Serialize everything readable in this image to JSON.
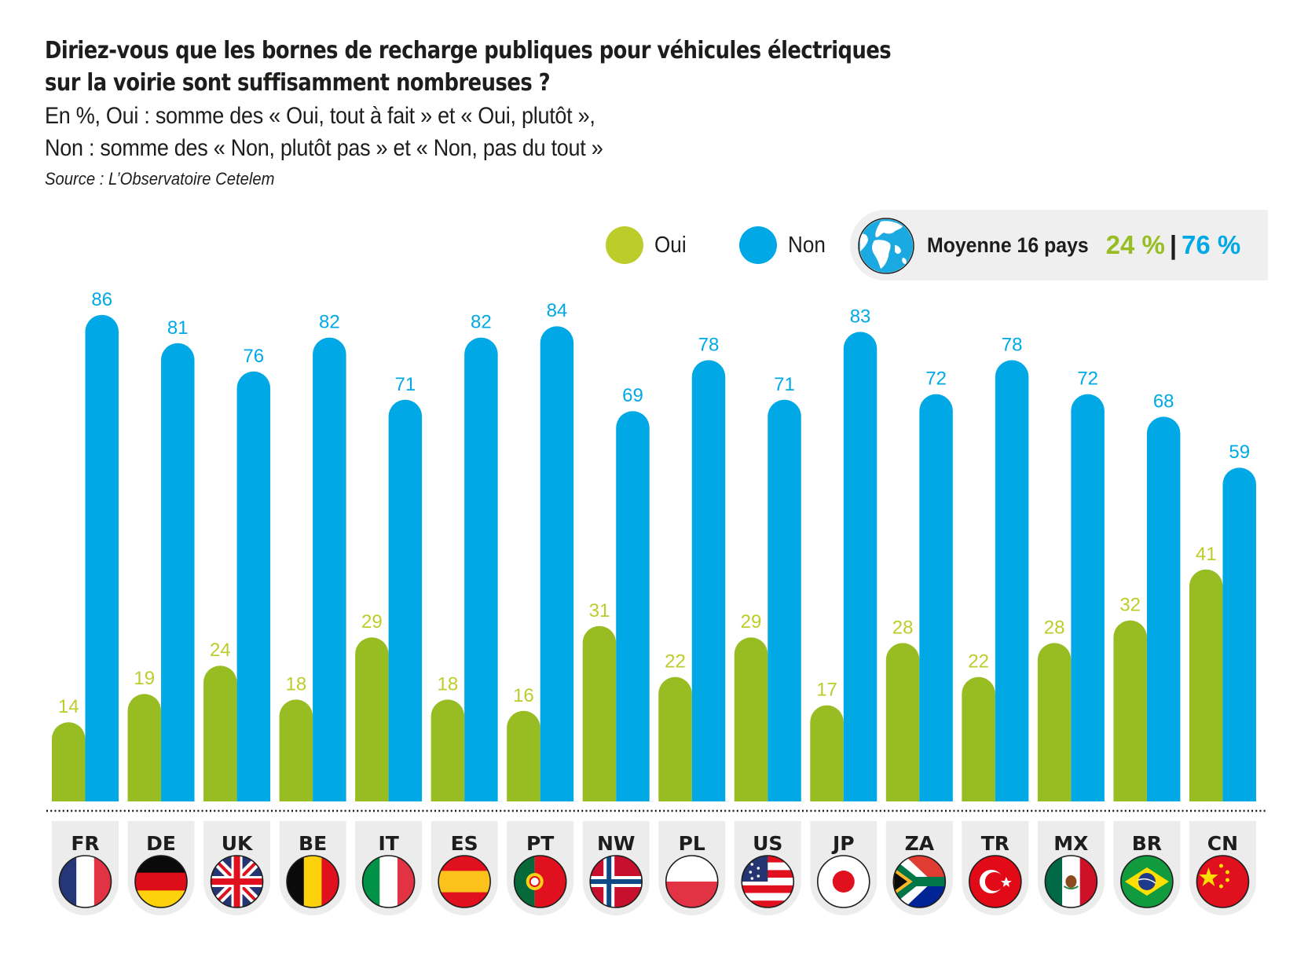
{
  "header": {
    "title_line1": "Diriez-vous que les bornes de recharge publiques pour véhicules électriques",
    "title_line2": "sur la voirie sont suffisamment nombreuses ?",
    "subtitle_line1": "En %, Oui : somme des « Oui, tout à fait » et « Oui, plutôt »,",
    "subtitle_line2": "Non : somme des « Non, plutôt pas » et « Non, pas du tout »",
    "source": "Source : L’Observatoire Cetelem"
  },
  "legend": {
    "oui_label": "Oui",
    "non_label": "Non",
    "average_label": "Moyenne 16 pays",
    "average_oui": "24 %",
    "average_separator": "|",
    "average_non": "76 %",
    "globe_icon": "globe-icon"
  },
  "colors": {
    "oui": "#97bd23",
    "oui_label": "#bccd2b",
    "non": "#00a9e6",
    "tile": "#ececec"
  },
  "chart_data": {
    "type": "bar",
    "title": "Diriez-vous que les bornes de recharge publiques pour véhicules électriques sur la voirie sont suffisamment nombreuses ?",
    "subtitle": "En %, Oui : somme des « Oui, tout à fait » et « Oui, plutôt », Non : somme des « Non, plutôt pas » et « Non, pas du tout »",
    "xlabel": "",
    "ylabel": "%",
    "ylim": [
      0,
      100
    ],
    "grid": false,
    "legend_position": "top-right",
    "categories": [
      "FR",
      "DE",
      "UK",
      "BE",
      "IT",
      "ES",
      "PT",
      "NW",
      "PL",
      "US",
      "JP",
      "ZA",
      "TR",
      "MX",
      "BR",
      "CN"
    ],
    "flags": [
      "france-flag-icon",
      "germany-flag-icon",
      "uk-flag-icon",
      "belgium-flag-icon",
      "italy-flag-icon",
      "spain-flag-icon",
      "portugal-flag-icon",
      "norway-flag-icon",
      "poland-flag-icon",
      "usa-flag-icon",
      "japan-flag-icon",
      "south-africa-flag-icon",
      "turkey-flag-icon",
      "mexico-flag-icon",
      "brazil-flag-icon",
      "china-flag-icon"
    ],
    "series": [
      {
        "name": "Oui",
        "values": [
          14,
          19,
          24,
          18,
          29,
          18,
          16,
          31,
          22,
          29,
          17,
          28,
          22,
          28,
          32,
          41
        ]
      },
      {
        "name": "Non",
        "values": [
          86,
          81,
          76,
          82,
          71,
          82,
          84,
          69,
          78,
          71,
          83,
          72,
          78,
          72,
          68,
          59
        ]
      }
    ],
    "average": {
      "label": "Moyenne 16 pays",
      "Oui": 24,
      "Non": 76
    }
  }
}
